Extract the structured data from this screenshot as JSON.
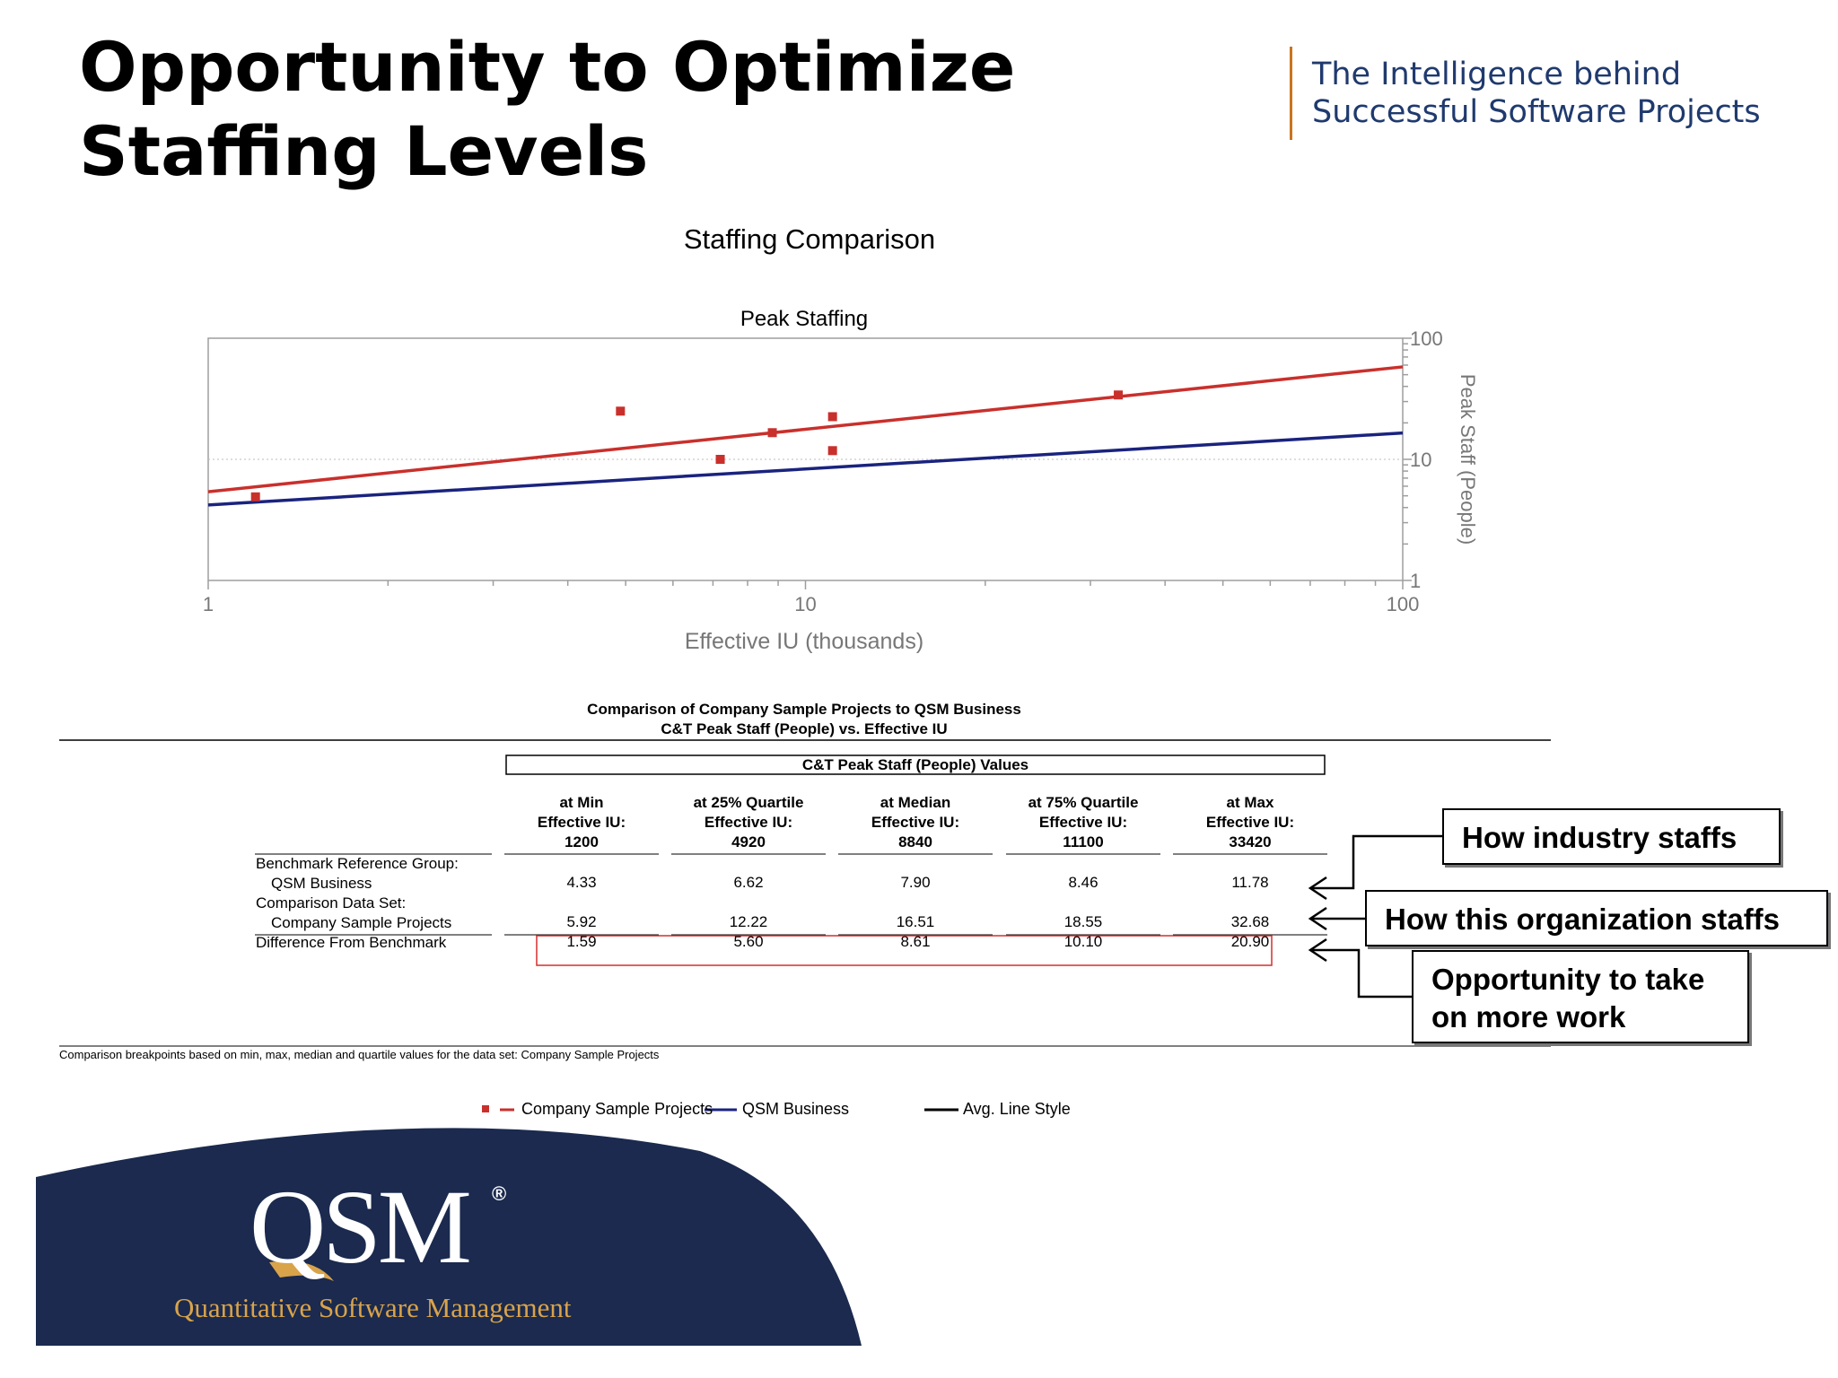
{
  "slide": {
    "title": "Opportunity to Optimize Staffing Levels",
    "tagline_line1": "The Intelligence behind",
    "tagline_line2": "Successful Software Projects",
    "accent_color": "#c9751f",
    "tagline_color": "#1f3a6e"
  },
  "chart_data": {
    "type": "scatter",
    "title": "Staffing Comparison",
    "subtitle": "Peak Staffing",
    "xlabel": "Effective IU (thousands)",
    "ylabel": "Peak Staff (People)",
    "x_scale": "log",
    "y_scale": "log",
    "xlim": [
      1,
      100
    ],
    "ylim": [
      1,
      100
    ],
    "x_ticks": [
      "1",
      "10",
      "100"
    ],
    "y_ticks": [
      "1",
      "10",
      "100"
    ],
    "y_axis_position": "right",
    "grid": "dotted line at 10",
    "series": [
      {
        "name": "Company Sample Projects",
        "color": "#c9302c",
        "points": [
          {
            "x": 1.2,
            "y": 4.9
          },
          {
            "x": 4.9,
            "y": 25
          },
          {
            "x": 7.2,
            "y": 10
          },
          {
            "x": 8.8,
            "y": 16.6
          },
          {
            "x": 11.1,
            "y": 22.5
          },
          {
            "x": 11.1,
            "y": 11.8
          },
          {
            "x": 33.4,
            "y": 34
          }
        ],
        "trend": [
          {
            "x": 1,
            "y": 5.4
          },
          {
            "x": 100,
            "y": 58
          }
        ]
      },
      {
        "name": "QSM Business",
        "color": "#1a237e",
        "trend": [
          {
            "x": 1,
            "y": 4.2
          },
          {
            "x": 100,
            "y": 16.5
          }
        ]
      }
    ],
    "legend": {
      "placement": "bottom",
      "items": [
        "Company Sample Projects",
        "QSM Business",
        "Avg. Line Style"
      ]
    }
  },
  "table": {
    "title_line1": "Comparison of Company Sample Projects to QSM Business",
    "title_line2": "C&T Peak Staff (People) vs. Effective IU",
    "group_header": "C&T Peak Staff (People) Values",
    "columns": [
      {
        "line1": "at Min",
        "line2": "Effective IU:",
        "line3": "1200"
      },
      {
        "line1": "at 25% Quartile",
        "line2": "Effective IU:",
        "line3": "4920"
      },
      {
        "line1": "at Median",
        "line2": "Effective IU:",
        "line3": "8840"
      },
      {
        "line1": "at 75% Quartile",
        "line2": "Effective IU:",
        "line3": "11100"
      },
      {
        "line1": "at Max",
        "line2": "Effective IU:",
        "line3": "33420"
      }
    ],
    "row_labels": {
      "benchmark_group": "Benchmark Reference Group:",
      "benchmark_name": "QSM Business",
      "comparison_group": "Comparison Data Set:",
      "comparison_name": "Company Sample Projects",
      "difference": "Difference From Benchmark"
    },
    "benchmark_values": [
      "4.33",
      "6.62",
      "7.90",
      "8.46",
      "11.78"
    ],
    "comparison_values": [
      "5.92",
      "12.22",
      "16.51",
      "18.55",
      "32.68"
    ],
    "difference_values": [
      "1.59",
      "5.60",
      "8.61",
      "10.10",
      "20.90"
    ],
    "footnote": "Comparison breakpoints based on min, max, median and quartile values for the data set: Company Sample Projects"
  },
  "callouts": {
    "industry": "How industry staffs",
    "organization": "How this organization staffs",
    "opportunity_line1": "Opportunity to take",
    "opportunity_line2": "on more work"
  },
  "logo": {
    "name": "QSM",
    "registered": "®",
    "subtitle": "Quantitative Software Management",
    "band_color": "#1b2a4e",
    "subtitle_color": "#d9a34a"
  }
}
